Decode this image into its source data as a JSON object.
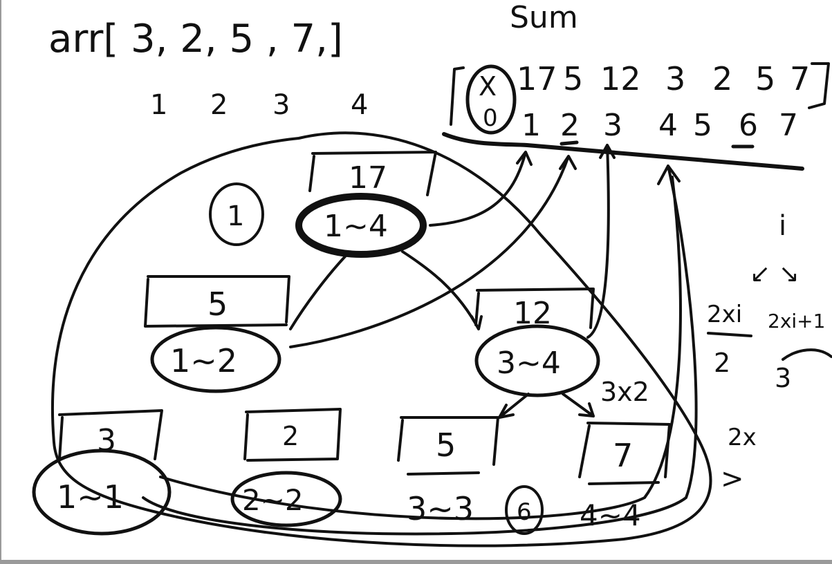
{
  "header": {
    "arr_text": "arr[ 3, 2, 5 , 7,]",
    "sum_label": "Sum",
    "indices": [
      "1",
      "2",
      "3",
      "4"
    ]
  },
  "sum_array": {
    "values": [
      "17",
      "5",
      "12",
      "3",
      "2",
      "5",
      "7"
    ],
    "crossed_value": "X",
    "zero_index": "0",
    "indices": [
      "1",
      "2",
      "3",
      "4",
      "5",
      "6",
      "7"
    ]
  },
  "tree": {
    "root": {
      "sum": "17",
      "range": "1~4",
      "label": "1"
    },
    "left": {
      "sum": "5",
      "range": "1~2"
    },
    "right": {
      "sum": "12",
      "range": "3~4"
    },
    "leaves": [
      {
        "sum": "3",
        "range": "1~1"
      },
      {
        "sum": "2",
        "range": "2~2"
      },
      {
        "sum": "5",
        "range": "3~3",
        "label": "6"
      },
      {
        "sum": "7",
        "range": "4~4"
      }
    ],
    "note_3x2": "3x2"
  },
  "side_notes": {
    "i": "i",
    "arrows": "↙ ↘",
    "left_child": "2xi",
    "right_child": "2xi+1",
    "example_left": "2",
    "example_right": "3",
    "two_x": "2x",
    "gt": ">"
  },
  "colors": {
    "ink": "#111111",
    "paper": "#ffffff",
    "border": "#9a9a9a"
  }
}
